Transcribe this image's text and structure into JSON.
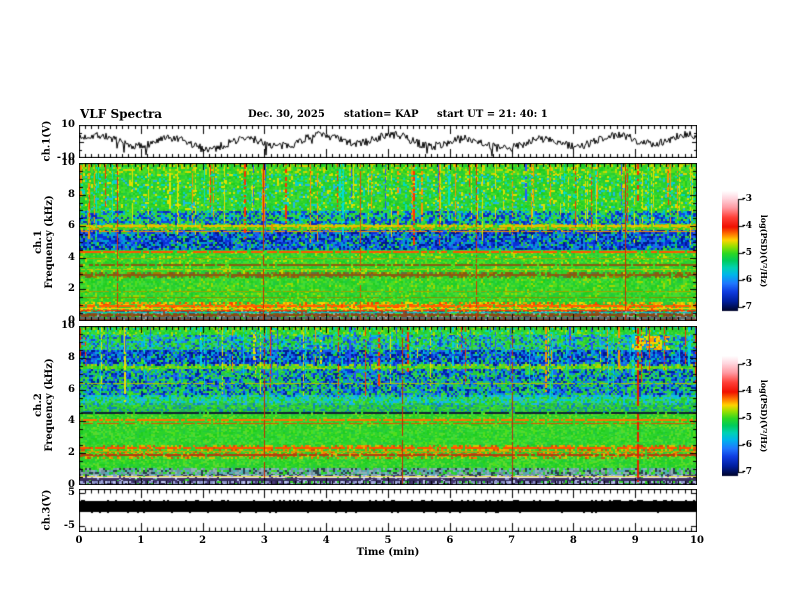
{
  "header": {
    "title": "VLF Spectra",
    "date": "Dec. 30, 2025",
    "station": "station= KAP",
    "start_ut": "start UT  =  21: 40: 1"
  },
  "x_axis": {
    "label": "Time (min)",
    "ticks": [
      "0",
      "1",
      "2",
      "3",
      "4",
      "5",
      "6",
      "7",
      "8",
      "9",
      "10"
    ]
  },
  "panels": {
    "ch1_wave": {
      "ylabel": "ch.1(V)",
      "yticks": [
        "10",
        "-10"
      ],
      "ylim": [
        -10,
        10
      ]
    },
    "spec1": {
      "ylabel_line1": "ch.1",
      "ylabel_line2": "Frequency (kHz)",
      "yticks": [
        "10",
        "8",
        "6",
        "4",
        "2",
        "0"
      ],
      "ylim_khz": [
        0,
        10
      ]
    },
    "spec2": {
      "ylabel_line1": "ch.2",
      "ylabel_line2": "Frequency (kHz)",
      "yticks": [
        "10",
        "8",
        "6",
        "4",
        "2",
        "0"
      ],
      "ylim_khz": [
        0,
        10
      ]
    },
    "ch3": {
      "ylabel": "ch.3(V)",
      "yticks": [
        "5",
        "-5"
      ],
      "ylim": [
        -5,
        5
      ]
    }
  },
  "colorbars": [
    {
      "label": "log(PSD)(V²/Hz)",
      "ticks": [
        "-3",
        "-4",
        "-5",
        "-6",
        "-7"
      ]
    },
    {
      "label": "log(PSD)(V²/Hz)",
      "ticks": [
        "-3",
        "-4",
        "-5",
        "-6",
        "-7"
      ]
    }
  ],
  "chart_data": {
    "type": "heatmap",
    "title": "VLF Spectra",
    "subtitle": "Dec. 30, 2025  station= KAP  start UT = 21:40:1",
    "x": {
      "label": "Time (min)",
      "range": [
        0,
        10
      ],
      "major_tick_step": 1,
      "minor_tick_step": 0.1
    },
    "colormap": {
      "label": "log(PSD)(V²/Hz)",
      "range_top_to_bottom": [
        -3,
        -7
      ],
      "ticks": [
        -3,
        -4,
        -5,
        -6,
        -7
      ],
      "stops": [
        [
          0,
          "#ffffff"
        ],
        [
          0.06,
          "#ffd8e0"
        ],
        [
          0.14,
          "#ff9aa2"
        ],
        [
          0.22,
          "#ff4038"
        ],
        [
          0.3,
          "#f01000"
        ],
        [
          0.36,
          "#ff7800"
        ],
        [
          0.41,
          "#ffd400"
        ],
        [
          0.46,
          "#9ce000"
        ],
        [
          0.52,
          "#2ed822"
        ],
        [
          0.58,
          "#00cc5c"
        ],
        [
          0.64,
          "#00d2b4"
        ],
        [
          0.7,
          "#00b4ec"
        ],
        [
          0.77,
          "#2078ff"
        ],
        [
          0.84,
          "#0f3ce0"
        ],
        [
          0.92,
          "#001e9c"
        ],
        [
          1,
          "#000428"
        ]
      ]
    },
    "waveform_ch1": {
      "type": "line",
      "ylim": [
        -10,
        10
      ],
      "description": "noisy broadband waveform oscillating about 0 V, ~±6 V, with downward spikes toward -10 V",
      "seed": 7
    },
    "spectrogram_ch1": {
      "ylim_khz": [
        0,
        10
      ],
      "seed": 11,
      "base_colors": [
        "#1fce1f",
        "#2ed42e",
        "#3bdc3b",
        "#21c940",
        "#51de1c",
        "#2bd22b"
      ],
      "bands": [
        {
          "f": [
            10,
            9.25
          ],
          "colors": [
            "#b8e000",
            "#e0d000",
            "#60d818"
          ],
          "d": 0.35
        },
        {
          "f": [
            9.25,
            6.95
          ],
          "colors": [
            "#00d8c0",
            "#20b8e8",
            "#2dd42d",
            "#e0e000"
          ],
          "d": 0.3
        },
        {
          "f": [
            6.95,
            6.1
          ],
          "colors": [
            "#1048e8",
            "#00b0e0",
            "#0828c0",
            "#30d850"
          ],
          "d": 0.75
        },
        {
          "f": [
            6.1,
            5.75
          ],
          "colors": [
            "#c8d000",
            "#50d820",
            "#e09000"
          ],
          "d": 0.5
        },
        {
          "f": [
            5.75,
            4.6
          ],
          "colors": [
            "#0830d8",
            "#001890",
            "#2060f0",
            "#00a0d0"
          ],
          "d": 0.85
        },
        {
          "f": [
            4.35,
            3.05
          ],
          "colors": [
            "#30d030",
            "#70d818",
            "#c8d800"
          ],
          "d": 0.3
        },
        {
          "f": [
            3.05,
            2.78
          ],
          "colors": [
            "#8a5a10",
            "#a08000",
            "#607040"
          ],
          "d": 0.6
        },
        {
          "f": [
            2.78,
            1.15
          ],
          "colors": [
            "#28d028",
            "#50d830",
            "#a0d800"
          ],
          "d": 0.3
        },
        {
          "f": [
            1.15,
            0.6
          ],
          "colors": [
            "#ff4000",
            "#ff9000",
            "#ffd000",
            "#d0c000",
            "#30c040"
          ],
          "d": 0.75
        },
        {
          "f": [
            0.6,
            0.0
          ],
          "colors": [
            "#707878",
            "#8a5a20",
            "#445555",
            "#904828",
            "#a0a8a8"
          ],
          "d": 0.8
        }
      ],
      "hlines": [
        {
          "f": 6.05,
          "c": "#e8c000",
          "w": 2
        },
        {
          "f": 5.7,
          "c": "#ff8800",
          "w": 1
        },
        {
          "f": 4.45,
          "c": "#ff5500",
          "w": 2
        },
        {
          "f": 4.0,
          "c": "#b0a000",
          "w": 1
        },
        {
          "f": 3.62,
          "c": "#8a5a10",
          "w": 2
        },
        {
          "f": 3.3,
          "c": "#c8c000",
          "w": 1
        },
        {
          "f": 3.0,
          "c": "#8a5a10",
          "w": 2
        },
        {
          "f": 1.9,
          "c": "#a0a000",
          "w": 1
        },
        {
          "f": 1.55,
          "c": "#889000",
          "w": 1
        },
        {
          "f": 1.0,
          "c": "#ff6000",
          "w": 2
        },
        {
          "f": 0.85,
          "c": "#ffd000",
          "w": 1
        },
        {
          "f": 0.72,
          "c": "#ff3000",
          "w": 1
        },
        {
          "f": 0.55,
          "c": "#00c8c8",
          "w": 1
        },
        {
          "f": 0.42,
          "c": "#8a4a10",
          "w": 2
        },
        {
          "f": 0.25,
          "c": "#607070",
          "w": 2
        },
        {
          "f": 0.1,
          "c": "#904020",
          "w": 2
        }
      ],
      "streaks": {
        "count": 95,
        "fmin": 4.6,
        "fspan": 3.5,
        "colors": [
          [
            "#e8e000",
            0.38
          ],
          [
            "#ff9000",
            0.16
          ],
          [
            "#ff3000",
            0.12
          ],
          [
            "#00e0d0",
            0.18
          ],
          [
            "#2855ff",
            0.16
          ]
        ],
        "fixed": [
          {
            "x": 0.062,
            "c": "#e03000",
            "w": 1
          },
          {
            "x": 0.298,
            "c": "#d02800",
            "w": 1
          },
          {
            "x": 0.455,
            "c": "#e05000",
            "w": 1
          },
          {
            "x": 0.642,
            "c": "#e03000",
            "w": 1
          },
          {
            "x": 0.884,
            "c": "#d02800",
            "w": 1
          }
        ]
      },
      "blobs": []
    },
    "spectrogram_ch2": {
      "ylim_khz": [
        0,
        10
      ],
      "seed": 23,
      "base_colors": [
        "#1fce1f",
        "#2ed42e",
        "#3bdc3b",
        "#21c940",
        "#51de1c",
        "#2bd22b"
      ],
      "bands": [
        {
          "f": [
            10,
            9.4
          ],
          "colors": [
            "#30d840",
            "#00d8c0",
            "#b0dc00"
          ],
          "d": 0.35
        },
        {
          "f": [
            9.4,
            8.45
          ],
          "colors": [
            "#00c0e0",
            "#2080f0",
            "#30c890",
            "#1048d0"
          ],
          "d": 0.55
        },
        {
          "f": [
            8.45,
            7.55
          ],
          "colors": [
            "#0830d0",
            "#001890",
            "#1860e8",
            "#00a8d8"
          ],
          "d": 0.85
        },
        {
          "f": [
            7.55,
            7.25
          ],
          "colors": [
            "#b8d000",
            "#60d820"
          ],
          "d": 0.5
        },
        {
          "f": [
            7.25,
            5.6
          ],
          "colors": [
            "#0838d8",
            "#0020a0",
            "#2068f0",
            "#00a0d8",
            "#20c870"
          ],
          "d": 0.7
        },
        {
          "f": [
            5.6,
            5.15
          ],
          "colors": [
            "#00c8d0",
            "#20b0f0",
            "#30d080"
          ],
          "d": 0.6
        },
        {
          "f": [
            5.15,
            4.65
          ],
          "colors": [
            "#20b060",
            "#1080c0",
            "#30c850"
          ],
          "d": 0.5
        },
        {
          "f": [
            4.5,
            3.6
          ],
          "colors": [
            "#30d030",
            "#80d818"
          ],
          "d": 0.3
        },
        {
          "f": [
            3.6,
            2.5
          ],
          "colors": [
            "#2ad42a",
            "#58d830"
          ],
          "d": 0.25
        },
        {
          "f": [
            2.5,
            1.7
          ],
          "colors": [
            "#ff7000",
            "#e0b000",
            "#c05010",
            "#d0c800",
            "#30c040"
          ],
          "d": 0.55
        },
        {
          "f": [
            1.7,
            1.05
          ],
          "colors": [
            "#28d028",
            "#60d830"
          ],
          "d": 0.3
        },
        {
          "f": [
            1.05,
            0.6
          ],
          "colors": [
            "#7090a0",
            "#50b0b8",
            "#284048",
            "#90b0b8"
          ],
          "d": 0.75
        },
        {
          "f": [
            0.6,
            0.0
          ],
          "colors": [
            "#a0a8e0",
            "#8890c8",
            "#483878",
            "#c0c8f0",
            "#302858"
          ],
          "d": 0.85
        }
      ],
      "hlines": [
        {
          "f": 6.42,
          "c": "#b0c000",
          "w": 1
        },
        {
          "f": 4.58,
          "c": "#102030",
          "w": 2
        },
        {
          "f": 4.15,
          "c": "#ff7000",
          "w": 2
        },
        {
          "f": 3.9,
          "c": "#e05000",
          "w": 1
        },
        {
          "f": 2.38,
          "c": "#ff5000",
          "w": 2
        },
        {
          "f": 2.15,
          "c": "#c8a000",
          "w": 1
        },
        {
          "f": 1.98,
          "c": "#b04010",
          "w": 2
        },
        {
          "f": 0.58,
          "c": "#e8e040",
          "w": 1
        },
        {
          "f": 0.52,
          "c": "#f0f0f0",
          "w": 1
        },
        {
          "f": 0.45,
          "c": "#403060",
          "w": 2
        },
        {
          "f": 0.3,
          "c": "#302858",
          "w": 1
        },
        {
          "f": 0.05,
          "c": "#c03040",
          "w": 1
        }
      ],
      "streaks": {
        "count": 85,
        "fmin": 5.2,
        "fspan": 3.4,
        "colors": [
          [
            "#00d0e0",
            0.3
          ],
          [
            "#2850ff",
            0.26
          ],
          [
            "#e8e000",
            0.18
          ],
          [
            "#ff3000",
            0.14
          ],
          [
            "#ff9000",
            0.12
          ]
        ],
        "fixed": [
          {
            "x": 0.3,
            "c": "#c82800",
            "w": 1
          },
          {
            "x": 0.523,
            "c": "#c82800",
            "w": 1
          },
          {
            "x": 0.7,
            "c": "#b83010",
            "w": 1
          },
          {
            "x": 0.903,
            "c": "#e82000",
            "w": 2
          }
        ]
      },
      "blobs": [
        {
          "x0": 0.895,
          "x1": 0.955,
          "f0": 9.35,
          "f1": 8.55,
          "colors": [
            "#ffd000",
            "#ff9800",
            "#e8e000"
          ],
          "d": 0.6
        }
      ]
    },
    "ch3": {
      "type": "line",
      "ylim": [
        -5,
        5
      ],
      "description": "fully saturated flat black band spanning entire time range, approx -1 to +2.6 V",
      "bar_v": [
        -0.9,
        2.6
      ],
      "seed": 5
    }
  }
}
